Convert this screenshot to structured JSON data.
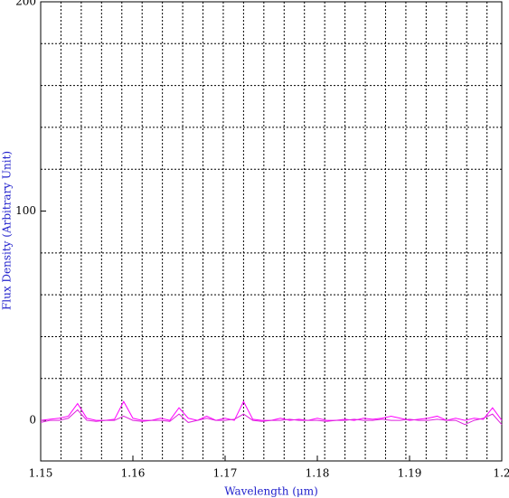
{
  "chart_data": {
    "type": "line",
    "x_label": "Wavelength (μm)",
    "y_label": "Flux Density (Arbitrary Unit)",
    "xlim": [
      1.15,
      1.2
    ],
    "xticks": [
      1.15,
      1.16,
      1.17,
      1.18,
      1.19,
      1.2
    ],
    "ylim": [
      -19.4,
      200
    ],
    "yticks": [
      0,
      100,
      200
    ],
    "xgrid": [
      1.1522,
      1.1544,
      1.1566,
      1.1588,
      1.161,
      1.1632,
      1.1654,
      1.1676,
      1.1698,
      1.172,
      1.1742,
      1.1764,
      1.1786,
      1.1808,
      1.183,
      1.1852,
      1.1874,
      1.1896,
      1.1918,
      1.194,
      1.1962,
      1.1984
    ],
    "ygrid": [
      20,
      40,
      60,
      80,
      120,
      140,
      160,
      180
    ],
    "x": [
      1.15,
      1.151,
      1.152,
      1.153,
      1.154,
      1.155,
      1.156,
      1.157,
      1.158,
      1.159,
      1.16,
      1.161,
      1.162,
      1.163,
      1.164,
      1.165,
      1.166,
      1.167,
      1.168,
      1.169,
      1.17,
      1.171,
      1.172,
      1.173,
      1.174,
      1.175,
      1.176,
      1.177,
      1.178,
      1.179,
      1.18,
      1.181,
      1.182,
      1.183,
      1.184,
      1.185,
      1.186,
      1.187,
      1.188,
      1.189,
      1.19,
      1.191,
      1.192,
      1.193,
      1.194,
      1.195,
      1.196,
      1.197,
      1.198,
      1.199,
      1.2
    ],
    "series": [
      {
        "color": "#ff00ff",
        "values": [
          0,
          0.5,
          1,
          2,
          8,
          1,
          0,
          0,
          0.5,
          9,
          1,
          0,
          0,
          1,
          0,
          6,
          1,
          0,
          2,
          0,
          1,
          0,
          9,
          0.5,
          0,
          0,
          1,
          0,
          0.5,
          0,
          1,
          0,
          0,
          0.5,
          0,
          1,
          0.5,
          1,
          2,
          1,
          0,
          0.5,
          1,
          2,
          0,
          1,
          0,
          1,
          0.5,
          6,
          0
        ]
      },
      {
        "color": "#dd22dd",
        "values": [
          -1,
          0,
          0,
          1,
          5,
          0,
          -0.5,
          0,
          0,
          2,
          0,
          -0.5,
          0,
          0,
          -0.5,
          3,
          -1,
          0,
          1,
          0,
          0,
          0.5,
          3,
          0,
          -0.5,
          0,
          0,
          0.5,
          0,
          0,
          0,
          -0.5,
          0,
          0,
          0.5,
          0,
          0,
          0.5,
          0,
          0,
          0.5,
          0,
          0,
          0.5,
          0,
          0,
          -2,
          0,
          1,
          3,
          -2
        ]
      }
    ]
  }
}
